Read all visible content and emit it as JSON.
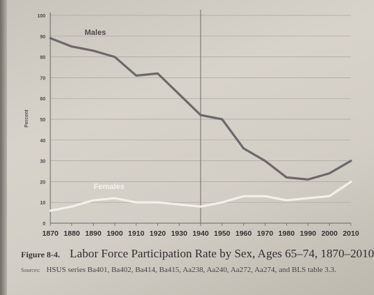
{
  "chart_data": {
    "type": "line",
    "title": "",
    "xlabel": "",
    "ylabel": "Percent",
    "ylim": [
      0,
      100
    ],
    "yticks": [
      "0",
      "10",
      "20",
      "30",
      "40",
      "50",
      "60",
      "70",
      "80",
      "90",
      "100"
    ],
    "xticks": [
      "1870",
      "1880",
      "1890",
      "1900",
      "1910",
      "1920",
      "1930",
      "1940",
      "1950",
      "1960",
      "1970",
      "1980",
      "1990",
      "2000",
      "2010"
    ],
    "x": [
      1870,
      1880,
      1890,
      1900,
      1910,
      1920,
      1930,
      1940,
      1950,
      1960,
      1970,
      1980,
      1990,
      2000,
      2010
    ],
    "grid": true,
    "vline_x": 1940,
    "series": [
      {
        "name": "Males",
        "color": "#6a6a6a",
        "values": [
          89,
          85,
          83,
          80,
          71,
          72,
          62,
          52,
          50,
          36,
          30,
          22,
          21,
          24,
          30
        ]
      },
      {
        "name": "Females",
        "color": "#f2f0ea",
        "values": [
          6,
          8,
          11,
          12,
          10,
          10,
          9,
          8,
          10,
          13,
          13,
          11,
          12,
          13,
          20
        ]
      }
    ]
  },
  "caption": {
    "figure_number": "Figure 8-4.",
    "title": "Labor Force Participation Rate by Sex, Ages 65–74, 1870–2010"
  },
  "source": {
    "label": "Sources:",
    "text": "HSUS series Ba401, Ba402, Ba414, Ba415, Aa238, Aa240, Aa272, Aa274, and BLS table 3.3."
  }
}
